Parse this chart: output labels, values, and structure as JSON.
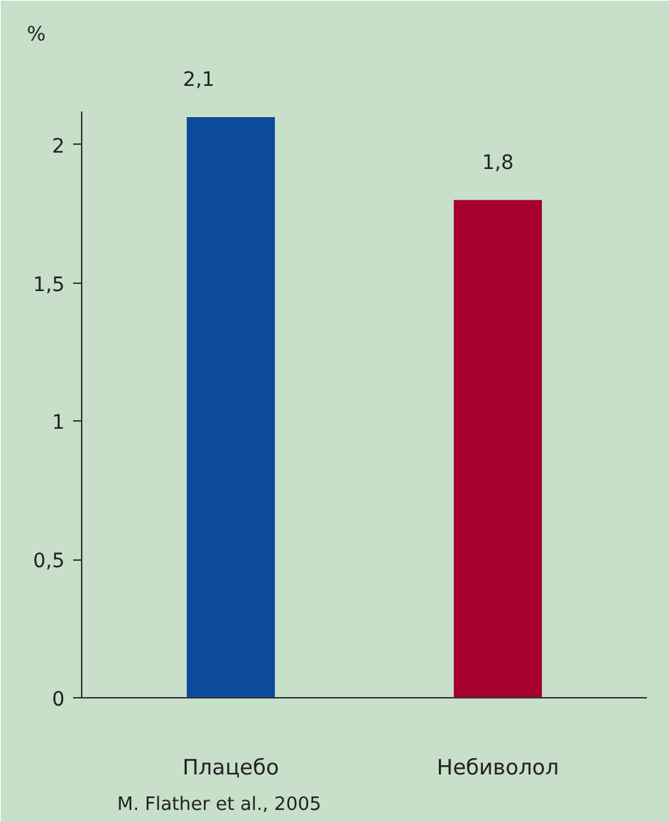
{
  "chart_data": {
    "type": "bar",
    "ylabel": "%",
    "categories": [
      "Плацебо",
      "Небиволол"
    ],
    "values": [
      2.1,
      1.8
    ],
    "colors": [
      "#0c4a9c",
      "#a60030"
    ],
    "value_labels": [
      "2,1",
      "1,8"
    ],
    "ylim": [
      0,
      2.12
    ],
    "yticks": [
      0,
      {
        "value": 0.5,
        "label": "0,5"
      },
      1,
      {
        "value": 1.5,
        "label": "1,5"
      },
      2
    ],
    "annotations": [
      "M. Flather et al., 2005"
    ]
  }
}
